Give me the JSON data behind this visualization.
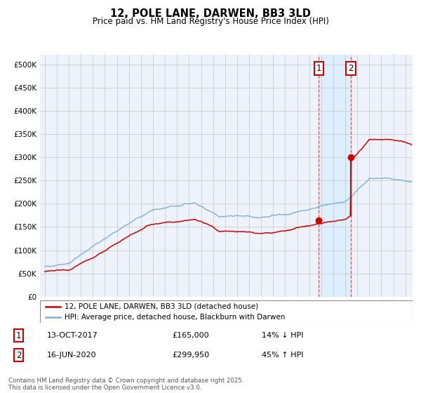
{
  "title": "12, POLE LANE, DARWEN, BB3 3LD",
  "subtitle": "Price paid vs. HM Land Registry's House Price Index (HPI)",
  "sale1_date_label": "13-OCT-2017",
  "sale1_price": 165000,
  "sale1_pct": "14% ↓ HPI",
  "sale2_date_label": "16-JUN-2020",
  "sale2_price": 299950,
  "sale2_pct": "45% ↑ HPI",
  "sale1_x": 2017.79,
  "sale2_x": 2020.46,
  "red_line_color": "#cc0000",
  "blue_line_color": "#7ab0d4",
  "shade_color": "#ddeeff",
  "grid_color": "#cccccc",
  "bg_color": "#eef2fb",
  "legend_label_red": "12, POLE LANE, DARWEN, BB3 3LD (detached house)",
  "legend_label_blue": "HPI: Average price, detached house, Blackburn with Darwen",
  "footnote": "Contains HM Land Registry data © Crown copyright and database right 2025.\nThis data is licensed under the Open Government Licence v3.0.",
  "ylim": [
    0,
    520000
  ],
  "xlim_start": 1994.6,
  "xlim_end": 2025.6
}
